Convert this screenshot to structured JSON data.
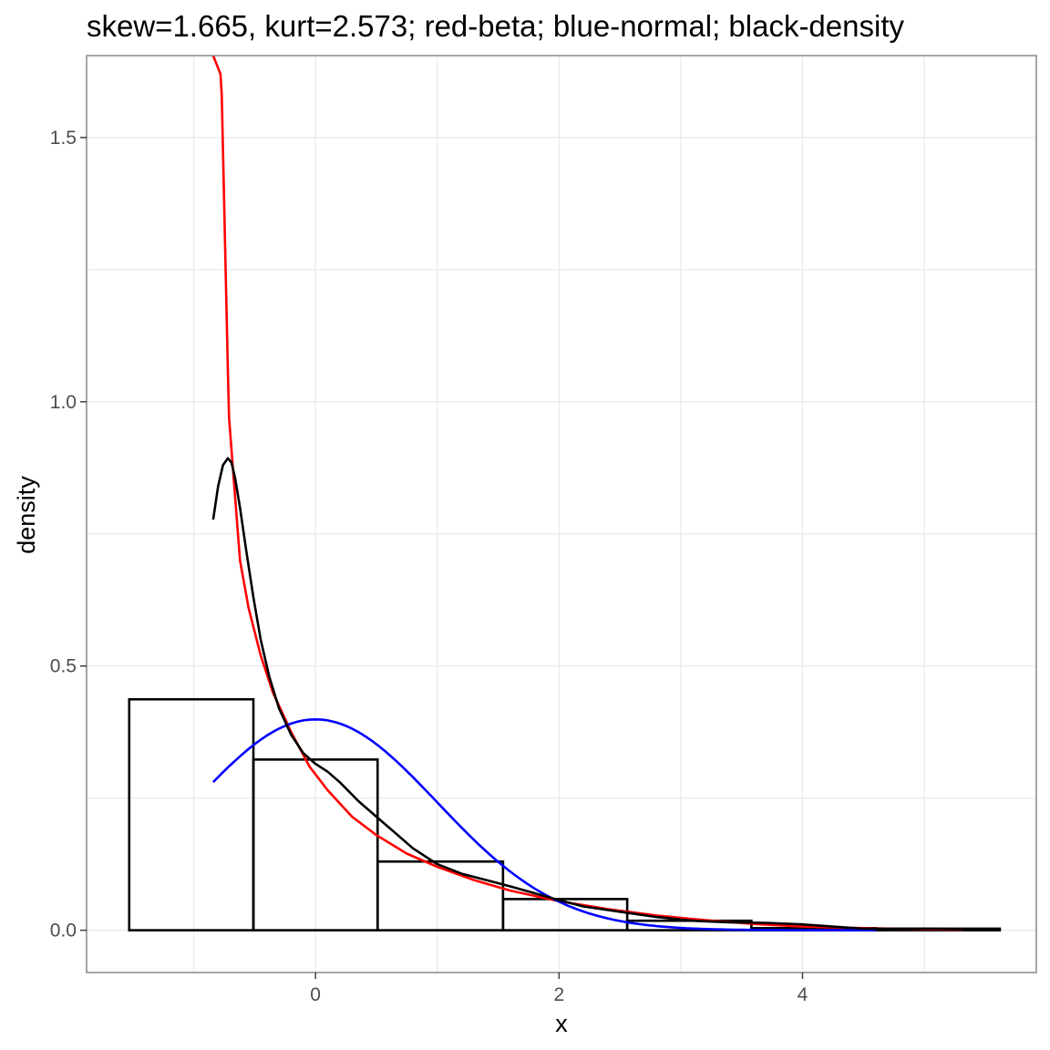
{
  "chart_data": {
    "type": "histogram+line",
    "title": "skew=1.665, kurt=2.573; red-beta; blue-normal; black-density",
    "xlabel": "x",
    "ylabel": "density",
    "xlim": [
      -1.88,
      5.92
    ],
    "ylim": [
      -0.08,
      1.655
    ],
    "x_ticks": [
      0,
      2,
      4
    ],
    "x_tick_labels": [
      "0",
      "2",
      "4"
    ],
    "y_ticks": [
      0.0,
      0.5,
      1.0,
      1.5
    ],
    "y_tick_labels": [
      "0.0",
      "0.5",
      "1.0",
      "1.5"
    ],
    "grid": true,
    "legend": "none",
    "histogram": {
      "color": "#000000",
      "bins": [
        {
          "x0": -1.53,
          "x1": -0.51,
          "density": 0.437
        },
        {
          "x0": -0.51,
          "x1": 0.51,
          "density": 0.323
        },
        {
          "x0": 0.51,
          "x1": 1.54,
          "density": 0.13
        },
        {
          "x0": 1.54,
          "x1": 2.56,
          "density": 0.059
        },
        {
          "x0": 2.56,
          "x1": 3.58,
          "density": 0.018
        },
        {
          "x0": 3.58,
          "x1": 4.6,
          "density": 0.004
        },
        {
          "x0": 4.6,
          "x1": 5.62,
          "density": 0.003
        }
      ]
    },
    "series": [
      {
        "name": "red-beta",
        "color": "#ff0000",
        "x": [
          -0.84,
          -0.78,
          -0.77,
          -0.72,
          -0.71,
          -0.67,
          -0.62,
          -0.55,
          -0.45,
          -0.35,
          -0.2,
          -0.05,
          0.1,
          0.3,
          0.5,
          0.75,
          1.0,
          1.3,
          1.6,
          2.0,
          2.4,
          2.8,
          3.2,
          3.6,
          4.0,
          4.5,
          5.0,
          5.31
        ],
        "y": [
          1.655,
          1.62,
          1.58,
          1.06,
          0.97,
          0.85,
          0.7,
          0.61,
          0.52,
          0.45,
          0.375,
          0.31,
          0.265,
          0.215,
          0.18,
          0.145,
          0.12,
          0.095,
          0.075,
          0.055,
          0.04,
          0.028,
          0.019,
          0.012,
          0.007,
          0.004,
          0.002,
          0.001
        ]
      },
      {
        "name": "blue-normal",
        "color": "#0000ff",
        "mean": 0.0,
        "sd": 1.0,
        "x_range": [
          -0.84,
          4.6
        ]
      },
      {
        "name": "black-density",
        "color": "#000000",
        "x": [
          -0.84,
          -0.8,
          -0.76,
          -0.72,
          -0.69,
          -0.66,
          -0.62,
          -0.57,
          -0.51,
          -0.45,
          -0.38,
          -0.3,
          -0.2,
          -0.1,
          0.0,
          0.1,
          0.2,
          0.35,
          0.5,
          0.65,
          0.8,
          1.0,
          1.2,
          1.4,
          1.6,
          1.8,
          2.0,
          2.2,
          2.5,
          2.8,
          3.1,
          3.4,
          3.7,
          4.0,
          4.3,
          4.5,
          4.75,
          5.0,
          5.3,
          5.62
        ],
        "y": [
          0.777,
          0.84,
          0.88,
          0.893,
          0.885,
          0.855,
          0.8,
          0.72,
          0.63,
          0.55,
          0.48,
          0.42,
          0.37,
          0.335,
          0.315,
          0.3,
          0.28,
          0.245,
          0.215,
          0.185,
          0.155,
          0.125,
          0.107,
          0.095,
          0.083,
          0.07,
          0.057,
          0.045,
          0.035,
          0.025,
          0.018,
          0.015,
          0.014,
          0.011,
          0.006,
          0.003,
          0.003,
          0.003,
          0.002,
          0.002
        ]
      }
    ]
  }
}
